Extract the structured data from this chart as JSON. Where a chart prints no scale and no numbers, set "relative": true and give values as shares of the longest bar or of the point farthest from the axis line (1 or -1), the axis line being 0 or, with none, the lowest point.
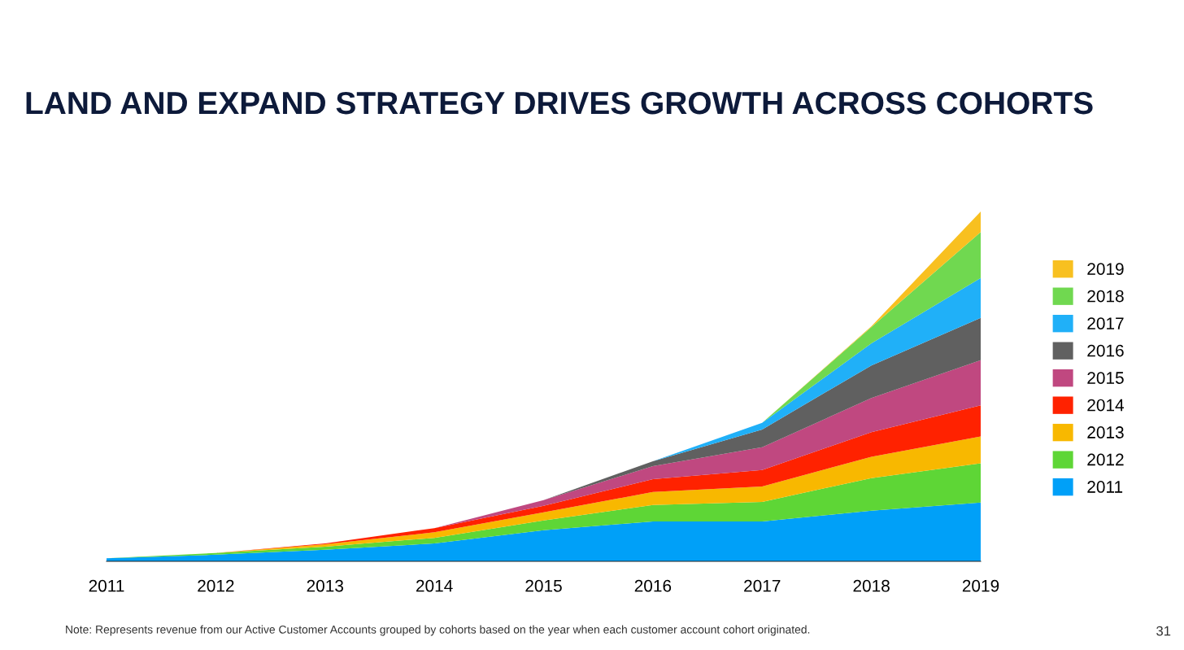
{
  "chart_data": {
    "type": "area",
    "stacked": true,
    "relative": true,
    "title": "LAND AND EXPAND STRATEGY DRIVES GROWTH ACROSS COHORTS",
    "categories": [
      "2011",
      "2012",
      "2013",
      "2014",
      "2015",
      "2016",
      "2017",
      "2018",
      "2019"
    ],
    "series": [
      {
        "name": "2011",
        "color": "#00a0f8",
        "values": [
          0.009,
          0.019,
          0.033,
          0.051,
          0.089,
          0.114,
          0.114,
          0.145,
          0.168
        ]
      },
      {
        "name": "2012",
        "color": "#5ed636",
        "values": [
          0,
          0.005,
          0.009,
          0.016,
          0.028,
          0.047,
          0.056,
          0.093,
          0.112
        ]
      },
      {
        "name": "2013",
        "color": "#f8b800",
        "values": [
          0,
          0,
          0.007,
          0.016,
          0.023,
          0.037,
          0.044,
          0.061,
          0.077
        ]
      },
      {
        "name": "2014",
        "color": "#ff2200",
        "values": [
          0,
          0,
          0.002,
          0.012,
          0.019,
          0.037,
          0.047,
          0.07,
          0.089
        ]
      },
      {
        "name": "2015",
        "color": "#c04880",
        "values": [
          0,
          0,
          0,
          0,
          0.016,
          0.037,
          0.065,
          0.098,
          0.129
        ]
      },
      {
        "name": "2016",
        "color": "#606060",
        "values": [
          0,
          0,
          0,
          0,
          0,
          0.014,
          0.051,
          0.093,
          0.121
        ]
      },
      {
        "name": "2017",
        "color": "#20b0f8",
        "values": [
          0,
          0,
          0,
          0,
          0,
          0,
          0.019,
          0.063,
          0.114
        ]
      },
      {
        "name": "2018",
        "color": "#70d850",
        "values": [
          0,
          0,
          0,
          0,
          0,
          0,
          0,
          0.047,
          0.131
        ]
      },
      {
        "name": "2019",
        "color": "#f8c020",
        "values": [
          0,
          0,
          0,
          0,
          0,
          0,
          0,
          0.002,
          0.059
        ]
      }
    ],
    "legend": "right",
    "grid": false,
    "annotations": [
      "Note: Represents revenue from our Active Customer Accounts grouped by cohorts based on the year when each customer account cohort originated.",
      "31"
    ]
  }
}
